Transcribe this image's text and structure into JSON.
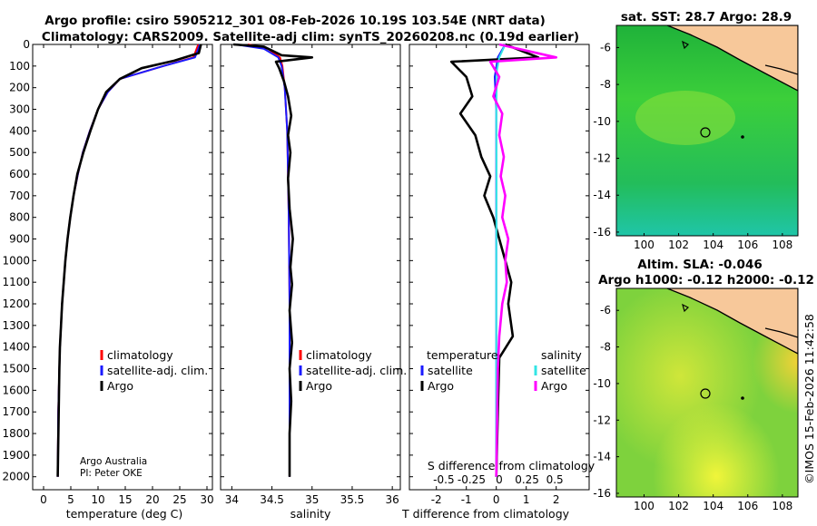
{
  "titles": {
    "line1": "Argo profile: csiro 5905212_301 08-Feb-2026 10.19S 103.54E (NRT data)",
    "line2": "Climatology: CARS2009. Satellite-adj clim: synTS_20260208.nc (0.19d earlier)"
  },
  "credits": {
    "line1": "Argo Australia",
    "line2": "PI: Peter OKE"
  },
  "stamp": "©IMOS 15-Feb-2026 11:42:58",
  "colors": {
    "climatology": "#ff0000",
    "satellite": "#1a1aff",
    "argo": "#000000",
    "sat_salinity": "#33e5e5",
    "argo_salinity": "#ff00ff",
    "land": "#f7c89a"
  },
  "depth_ticks": [
    "0",
    "100",
    "200",
    "300",
    "400",
    "500",
    "600",
    "700",
    "800",
    "900",
    "1000",
    "1100",
    "1200",
    "1300",
    "1400",
    "1500",
    "1600",
    "1700",
    "1800",
    "1900",
    "2000"
  ],
  "legend1": {
    "climatology": "climatology",
    "satellite": "satellite-adj. clim.",
    "argo": "Argo"
  },
  "legend3": {
    "temperature": "temperature",
    "salinity": "salinity",
    "satellite": "satellite",
    "argo": "Argo"
  },
  "map1": {
    "title": "sat. SST: 28.7 Argo: 28.9"
  },
  "map2": {
    "title1": "Altim. SLA: -0.046",
    "title2": "Argo h1000: -0.12 h2000: -0.12"
  },
  "map_xticks": [
    "100",
    "102",
    "104",
    "106",
    "108"
  ],
  "map_yticks": [
    "-6",
    "-8",
    "-10",
    "-12",
    "-14",
    "-16"
  ],
  "chart_data": [
    {
      "type": "line",
      "title": "",
      "xlabel": "temperature (deg C)",
      "ylabel": "",
      "xlim": [
        -2,
        31
      ],
      "ylim": [
        2060,
        0
      ],
      "xticks": [
        "0",
        "5",
        "10",
        "15",
        "20",
        "25",
        "30"
      ],
      "series": [
        {
          "name": "climatology",
          "x": [
            28.4,
            27.5,
            22,
            14,
            11.8,
            10,
            8.5,
            7.2,
            6.3,
            5.5,
            4.9,
            4.4,
            4,
            3.7,
            3.4,
            3.2,
            3,
            2.9,
            2.7,
            2.6
          ],
          "y": [
            0,
            60,
            100,
            160,
            220,
            300,
            400,
            500,
            600,
            700,
            800,
            900,
            1000,
            1100,
            1200,
            1300,
            1400,
            1500,
            1700,
            2000
          ]
        },
        {
          "name": "satellite-adj. clim.",
          "x": [
            28.7,
            27.8,
            22,
            14,
            11.8,
            10,
            8.5,
            7.2,
            6.3,
            5.5,
            4.9,
            4.4,
            4,
            3.7,
            3.4,
            3.2,
            3,
            2.9,
            2.7,
            2.6
          ],
          "y": [
            0,
            60,
            100,
            160,
            220,
            300,
            400,
            500,
            600,
            700,
            800,
            900,
            1000,
            1100,
            1200,
            1300,
            1400,
            1500,
            1700,
            2000
          ]
        },
        {
          "name": "Argo",
          "x": [
            28.9,
            28.5,
            24,
            18,
            14,
            11.5,
            10,
            8.6,
            7.3,
            6.2,
            5.5,
            4.9,
            4.4,
            4,
            3.7,
            3.4,
            3.2,
            3,
            2.9,
            2.6
          ],
          "y": [
            0,
            40,
            75,
            110,
            160,
            220,
            300,
            400,
            500,
            600,
            700,
            800,
            900,
            1000,
            1100,
            1200,
            1300,
            1400,
            1500,
            2000
          ]
        }
      ]
    },
    {
      "type": "line",
      "title": "",
      "xlabel": "salinity",
      "ylabel": "",
      "xlim": [
        33.86,
        36.1
      ],
      "ylim": [
        2060,
        0
      ],
      "xticks": [
        "34",
        "34.5",
        "35",
        "35.5",
        "36"
      ],
      "series": [
        {
          "name": "climatology",
          "x": [
            34.2,
            34.45,
            34.6,
            34.63,
            34.66,
            34.69,
            34.7,
            34.71,
            34.72,
            34.72,
            34.72
          ],
          "y": [
            0,
            20,
            60,
            100,
            200,
            400,
            600,
            800,
            1200,
            1600,
            2000
          ]
        },
        {
          "name": "satellite-adj. clim.",
          "x": [
            34.05,
            34.4,
            34.58,
            34.62,
            34.66,
            34.69,
            34.7,
            34.71,
            34.72,
            34.72,
            34.72
          ],
          "y": [
            0,
            20,
            60,
            100,
            200,
            400,
            600,
            800,
            1200,
            1600,
            2000
          ]
        },
        {
          "name": "Argo",
          "x": [
            34.02,
            34.4,
            34.62,
            35.0,
            34.55,
            34.59,
            34.65,
            34.7,
            34.74,
            34.7,
            34.73,
            34.7,
            34.72,
            34.76,
            34.73,
            34.75,
            34.72,
            34.75,
            34.72,
            34.74,
            34.72,
            34.72
          ],
          "y": [
            0,
            10,
            50,
            60,
            80,
            110,
            170,
            240,
            330,
            420,
            500,
            620,
            760,
            900,
            1030,
            1110,
            1230,
            1380,
            1500,
            1650,
            1800,
            2000
          ]
        }
      ]
    },
    {
      "type": "line",
      "title": "",
      "xlabel": "T difference from climatology",
      "xlabel2": "S difference from climatology",
      "ylabel": "",
      "xlim": [
        -2.9,
        3.1
      ],
      "ylim": [
        2060,
        0
      ],
      "xticks": [
        "-2",
        "-1",
        "0",
        "1",
        "2"
      ],
      "xticks2": [
        "-0.5",
        "-0.25",
        "0",
        "0.25",
        "0.5"
      ],
      "series": [
        {
          "name": "temperature satellite",
          "x": [
            0.3,
            0.05,
            -0.05,
            0,
            0,
            0,
            0,
            0
          ],
          "y": [
            0,
            60,
            150,
            300,
            600,
            1000,
            1500,
            2000
          ]
        },
        {
          "name": "temperature Argo",
          "x": [
            0.3,
            1.4,
            -1.5,
            -1.0,
            -0.8,
            -1.2,
            -0.7,
            -0.5,
            -0.2,
            -0.4,
            -0.1,
            0.1,
            0.3,
            0.5,
            0.4,
            0.55,
            0.1,
            0.05,
            0
          ],
          "y": [
            0,
            60,
            80,
            150,
            240,
            320,
            420,
            520,
            610,
            700,
            800,
            900,
            1000,
            1100,
            1200,
            1350,
            1450,
            1700,
            2000
          ]
        },
        {
          "name": "salinity satellite",
          "x": [
            0.3,
            0.1,
            0.02,
            0,
            0.01,
            0,
            0,
            0
          ],
          "y": [
            0,
            60,
            120,
            300,
            600,
            1000,
            1500,
            2000
          ]
        },
        {
          "name": "salinity Argo",
          "x": [
            0.1,
            2.0,
            -0.2,
            0.1,
            -0.1,
            0.2,
            0.1,
            0.25,
            0.15,
            0.3,
            0.2,
            0.4,
            0.3,
            0.35,
            0.2,
            0.1,
            0.05,
            0
          ],
          "y": [
            0,
            60,
            80,
            150,
            240,
            320,
            420,
            520,
            610,
            700,
            800,
            900,
            1000,
            1100,
            1200,
            1350,
            1500,
            2000
          ]
        }
      ]
    }
  ]
}
